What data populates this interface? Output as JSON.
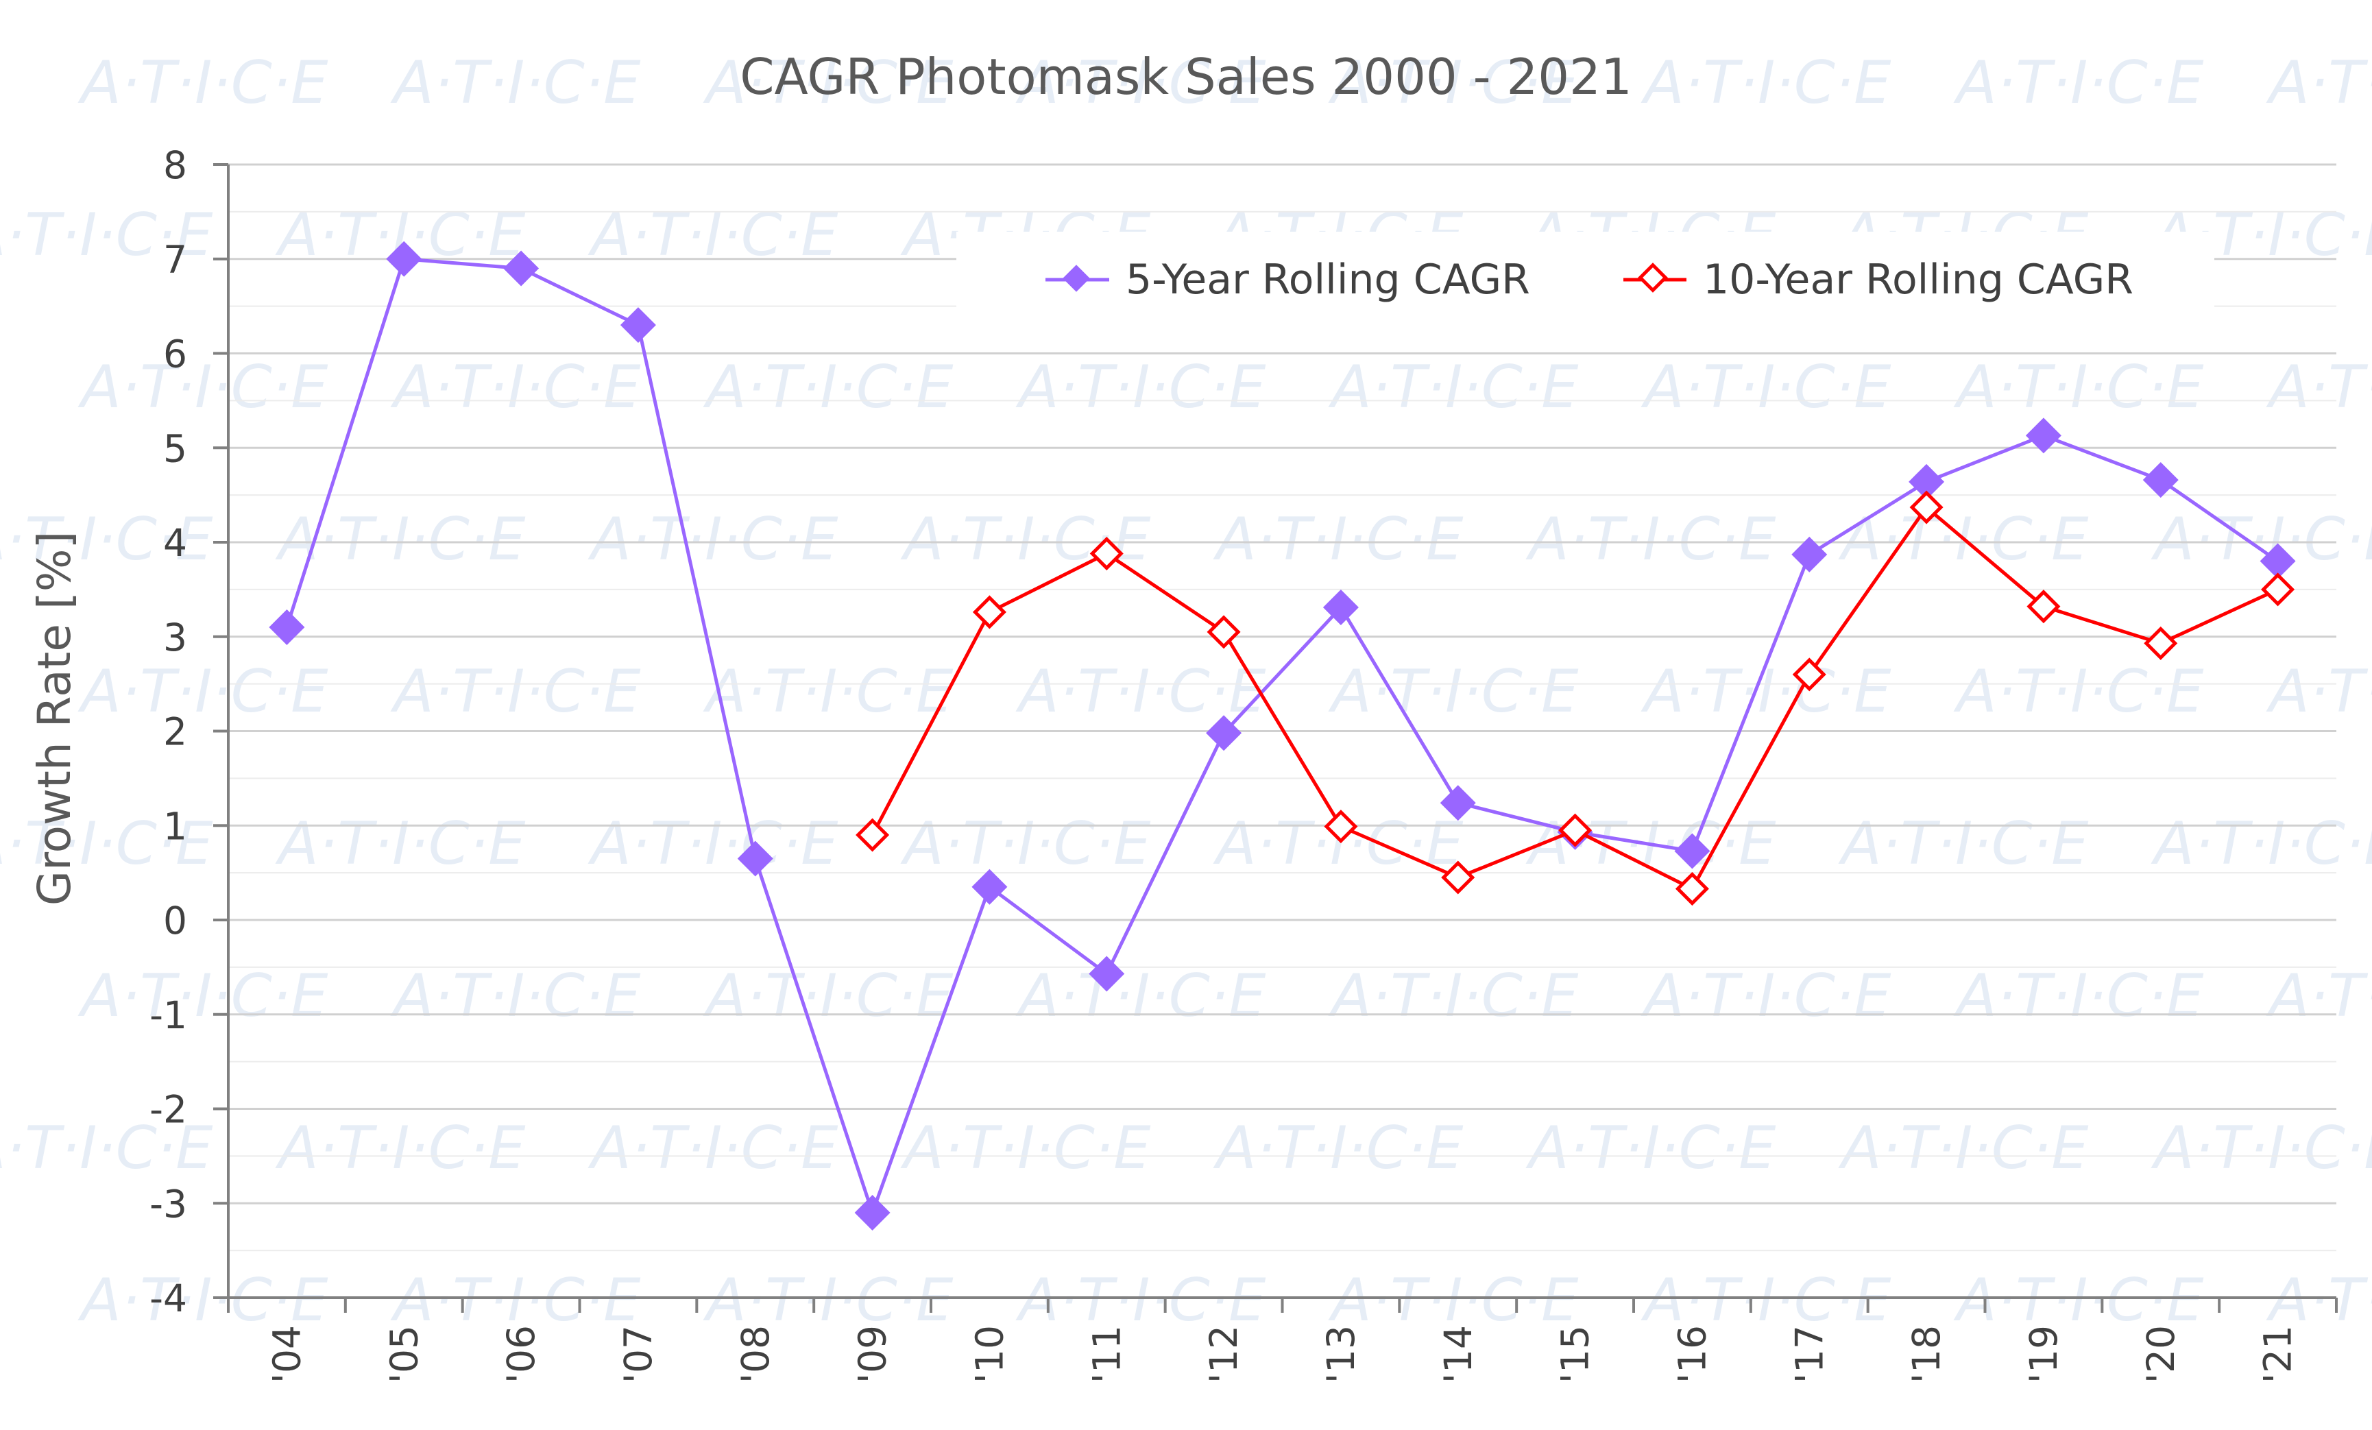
{
  "chart_data": {
    "type": "line",
    "title": "CAGR Photomask Sales 2000 - 2021",
    "xlabel": "",
    "ylabel": "Growth Rate [%]",
    "ylim": [
      -4,
      8
    ],
    "yticks": [
      8,
      7,
      6,
      5,
      4,
      3,
      2,
      1,
      0,
      -1,
      -2,
      -3,
      -4
    ],
    "categories": [
      "'04",
      "'05",
      "'06",
      "'07",
      "'08",
      "'09",
      "'10",
      "'11",
      "'12",
      "'13",
      "'14",
      "'15",
      "'16",
      "'17",
      "'18",
      "'19",
      "'20",
      "'21"
    ],
    "grid": true,
    "legend_position": "top-right",
    "watermark": "A·T·I·C·E",
    "series": [
      {
        "name": "5-Year Rolling CAGR",
        "color": "#9966ff",
        "marker": "filled-diamond",
        "values": [
          3.1,
          7.0,
          6.9,
          6.3,
          0.65,
          -3.1,
          0.35,
          -0.57,
          1.98,
          3.31,
          1.24,
          0.93,
          0.73,
          3.87,
          4.64,
          5.13,
          4.66,
          3.8
        ]
      },
      {
        "name": "10-Year Rolling CAGR",
        "color": "#ff0000",
        "marker": "hollow-diamond",
        "values": [
          null,
          null,
          null,
          null,
          null,
          0.9,
          3.26,
          3.88,
          3.05,
          0.99,
          0.45,
          0.95,
          0.33,
          2.6,
          4.37,
          3.32,
          2.93,
          3.5
        ]
      }
    ]
  }
}
